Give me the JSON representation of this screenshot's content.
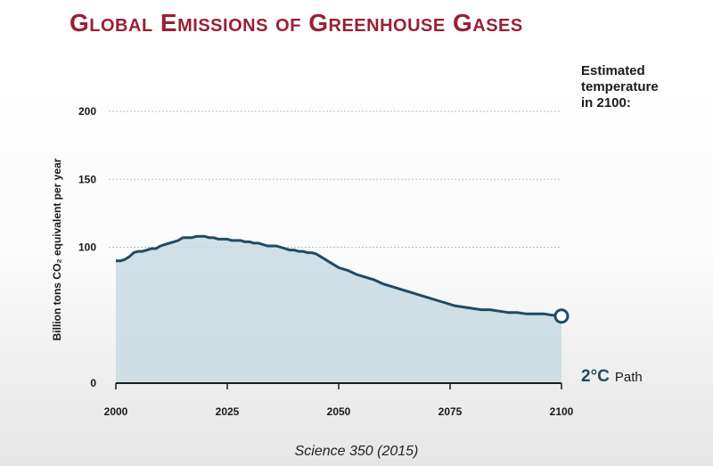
{
  "title": "Global Emissions of Greenhouse Gases",
  "source": "Science 350 (2015)",
  "colors": {
    "title": "#9b1f33",
    "line": "#1f4b63",
    "fill": "#c9dbe3",
    "grid": "#bfbfbf",
    "label": "#1f4b63"
  },
  "chart_data": {
    "type": "area",
    "title": "Global Emissions of Greenhouse Gases",
    "xlabel": "",
    "ylabel": "Billion tons CO₂ equivalent per year",
    "xlim": [
      2000,
      2100
    ],
    "ylim": [
      0,
      200
    ],
    "xticks": [
      "2000",
      "2025",
      "2050",
      "2075",
      "2100"
    ],
    "yticks": [
      "0",
      "100",
      "150",
      "200"
    ],
    "grid": "horizontal",
    "x": [
      2000,
      2001,
      2002,
      2003,
      2004,
      2005,
      2006,
      2007,
      2008,
      2009,
      2010,
      2011,
      2012,
      2013,
      2014,
      2015,
      2016,
      2017,
      2018,
      2019,
      2020,
      2021,
      2022,
      2023,
      2024,
      2025,
      2026,
      2027,
      2028,
      2029,
      2030,
      2031,
      2032,
      2033,
      2034,
      2035,
      2036,
      2037,
      2038,
      2039,
      2040,
      2041,
      2042,
      2043,
      2044,
      2045,
      2046,
      2047,
      2048,
      2049,
      2050,
      2052,
      2054,
      2056,
      2058,
      2060,
      2062,
      2064,
      2066,
      2068,
      2070,
      2072,
      2074,
      2076,
      2078,
      2080,
      2082,
      2084,
      2086,
      2088,
      2090,
      2092,
      2094,
      2096,
      2098,
      2100
    ],
    "series": [
      {
        "values": [
          90,
          90,
          91,
          93,
          96,
          97,
          97,
          98,
          99,
          99,
          101,
          102,
          103,
          104,
          105,
          107,
          107,
          107,
          108,
          108,
          108,
          107,
          107,
          106,
          106,
          106,
          105,
          105,
          105,
          104,
          104,
          103,
          103,
          102,
          101,
          101,
          101,
          100,
          99,
          98,
          98,
          97,
          97,
          96,
          96,
          95,
          93,
          91,
          89,
          87,
          85,
          83,
          80,
          78,
          76,
          73,
          71,
          69,
          67,
          65,
          63,
          61,
          59,
          57,
          56,
          55,
          54,
          54,
          53,
          52,
          52,
          51,
          51,
          51,
          50,
          50
        ]
      }
    ],
    "annotations": {
      "temperature_header": [
        "Estimated",
        "temperature",
        "in 2100:"
      ],
      "end_marker": {
        "temp": "2°C",
        "label": "Path"
      }
    }
  }
}
